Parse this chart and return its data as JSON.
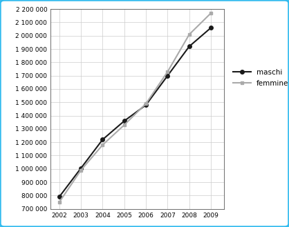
{
  "years": [
    2002,
    2003,
    2004,
    2005,
    2006,
    2007,
    2008,
    2009
  ],
  "maschi": [
    790000,
    1005000,
    1220000,
    1360000,
    1480000,
    1700000,
    1920000,
    2060000
  ],
  "femmine": [
    750000,
    990000,
    1180000,
    1330000,
    1490000,
    1730000,
    2010000,
    2170000
  ],
  "maschi_color": "#1a1a1a",
  "femmine_color": "#aaaaaa",
  "ylim_min": 700000,
  "ylim_max": 2200000,
  "ytick_step": 100000,
  "legend_maschi": "maschi",
  "legend_femmine": "femmine",
  "border_color": "#33bbee",
  "border_linewidth": 2.5,
  "grid_color": "#cccccc",
  "line_width": 1.5,
  "marker_size_maschi": 4,
  "marker_size_femmine": 3.5,
  "tick_fontsize": 6.5,
  "legend_fontsize": 7.5
}
